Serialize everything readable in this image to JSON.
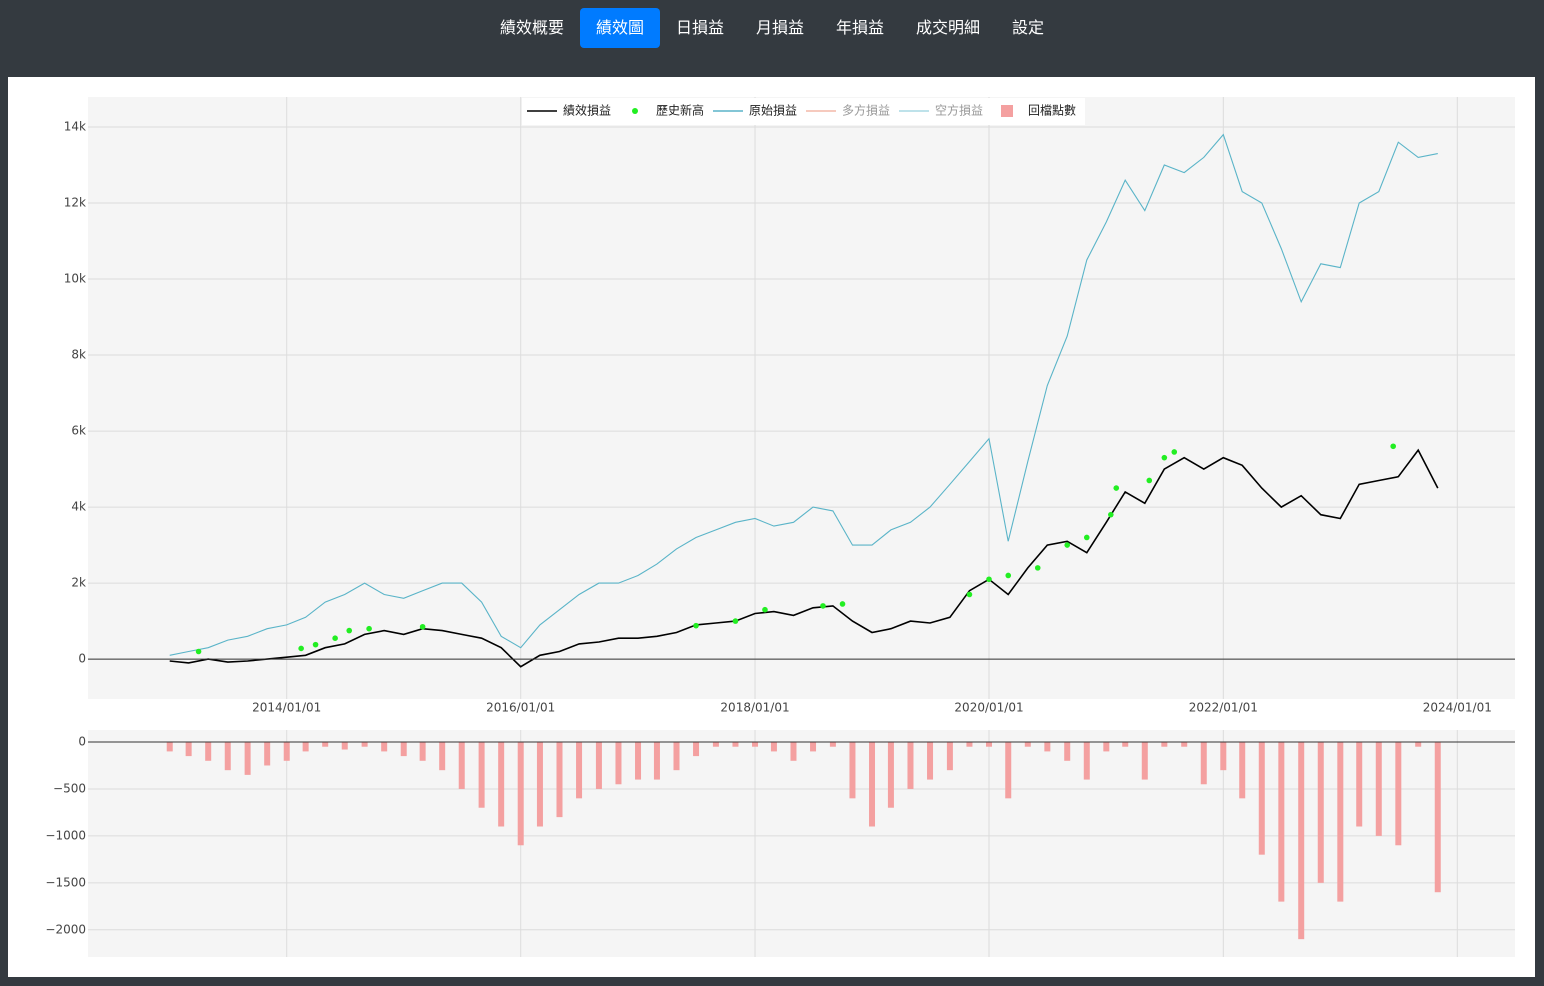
{
  "nav": {
    "tabs": [
      "績效概要",
      "績效圖",
      "日損益",
      "月損益",
      "年損益",
      "成交明細",
      "設定"
    ],
    "active": 1
  },
  "chart_data": [
    {
      "type": "line",
      "legend": "top",
      "x": [
        "2013/01/01",
        "2013/03/01",
        "2013/05/01",
        "2013/07/01",
        "2013/09/01",
        "2013/11/01",
        "2014/01/01",
        "2014/03/01",
        "2014/05/01",
        "2014/07/01",
        "2014/09/01",
        "2014/11/01",
        "2015/01/01",
        "2015/03/01",
        "2015/05/01",
        "2015/07/01",
        "2015/09/01",
        "2015/11/01",
        "2016/01/01",
        "2016/03/01",
        "2016/05/01",
        "2016/07/01",
        "2016/09/01",
        "2016/11/01",
        "2017/01/01",
        "2017/03/01",
        "2017/05/01",
        "2017/07/01",
        "2017/09/01",
        "2017/11/01",
        "2018/01/01",
        "2018/03/01",
        "2018/05/01",
        "2018/07/01",
        "2018/09/01",
        "2018/11/01",
        "2019/01/01",
        "2019/03/01",
        "2019/05/01",
        "2019/07/01",
        "2019/09/01",
        "2019/11/01",
        "2020/01/01",
        "2020/03/01",
        "2020/05/01",
        "2020/07/01",
        "2020/09/01",
        "2020/11/01",
        "2021/01/01",
        "2021/03/01",
        "2021/05/01",
        "2021/07/01",
        "2021/09/01",
        "2021/11/01",
        "2022/01/01",
        "2022/03/01",
        "2022/05/01",
        "2022/07/01",
        "2022/09/01",
        "2022/11/01",
        "2023/01/01",
        "2023/03/01",
        "2023/05/01",
        "2023/07/01",
        "2023/09/01",
        "2023/11/01"
      ],
      "series": [
        {
          "name": "績效損益",
          "color": "#000000",
          "values": [
            -50,
            -100,
            0,
            -80,
            -50,
            0,
            50,
            100,
            300,
            400,
            650,
            750,
            650,
            800,
            750,
            650,
            550,
            300,
            -200,
            100,
            200,
            400,
            450,
            550,
            550,
            600,
            700,
            900,
            950,
            1000,
            1200,
            1250,
            1150,
            1350,
            1400,
            1000,
            700,
            800,
            1000,
            950,
            1100,
            1800,
            2100,
            1700,
            2400,
            3000,
            3100,
            2800,
            3600,
            4400,
            4100,
            5000,
            5300,
            5000,
            5300,
            5100,
            4500,
            4000,
            4300,
            3800,
            3700,
            4600,
            4700,
            4800,
            5500,
            4500
          ]
        },
        {
          "name": "歷史新高",
          "color": "#22ee22",
          "type": "scatter",
          "x": [
            "2013/04/01",
            "2014/02/15",
            "2014/04/01",
            "2014/06/01",
            "2014/07/15",
            "2014/09/15",
            "2015/03/01",
            "2017/07/01",
            "2017/11/01",
            "2018/02/01",
            "2018/08/01",
            "2018/10/01",
            "2019/11/01",
            "2020/01/01",
            "2020/03/01",
            "2020/06/01",
            "2020/09/01",
            "2020/11/01",
            "2021/01/15",
            "2021/02/01",
            "2021/05/15",
            "2021/07/01",
            "2021/08/01",
            "2023/06/15"
          ],
          "values": [
            200,
            280,
            380,
            550,
            750,
            800,
            850,
            880,
            1000,
            1300,
            1400,
            1450,
            1700,
            2100,
            2200,
            2400,
            3000,
            3200,
            3800,
            4500,
            4700,
            5300,
            5450,
            5600
          ]
        },
        {
          "name": "原始損益",
          "color": "#5ab4c8",
          "values": [
            100,
            200,
            300,
            500,
            600,
            800,
            900,
            1100,
            1500,
            1700,
            2000,
            1700,
            1600,
            1800,
            2000,
            2000,
            1500,
            600,
            300,
            900,
            1300,
            1700,
            2000,
            2000,
            2200,
            2500,
            2900,
            3200,
            3400,
            3600,
            3700,
            3500,
            3600,
            4000,
            3900,
            3000,
            3000,
            3400,
            3600,
            4000,
            4600,
            5200,
            5800,
            3100,
            5200,
            7200,
            8500,
            10500,
            11500,
            12600,
            11800,
            13000,
            12800,
            13200,
            13800,
            12300,
            12000,
            10800,
            9400,
            10400,
            10300,
            12000,
            12300,
            13600,
            13200,
            13300
          ]
        },
        {
          "name": "多方損益",
          "color": "#f4b8a8",
          "visible": false
        },
        {
          "name": "空方損益",
          "color": "#a8d8e4",
          "visible": false
        }
      ],
      "xlim": [
        "2012/04/21",
        "2024/06/29"
      ],
      "xticks": [
        "2014/01/01",
        "2016/01/01",
        "2018/01/01",
        "2020/01/01",
        "2022/01/01",
        "2024/01/01"
      ],
      "ylim": [
        -1050,
        14790
      ],
      "yticks": [
        0,
        {
          "value": 2000,
          "label": "2k"
        },
        {
          "value": 4000,
          "label": "4k"
        },
        {
          "value": 6000,
          "label": "6k"
        },
        {
          "value": 8000,
          "label": "8k"
        },
        {
          "value": 10000,
          "label": "10k"
        },
        {
          "value": 12000,
          "label": "12k"
        },
        {
          "value": 14000,
          "label": "14k"
        }
      ],
      "grid": true
    },
    {
      "type": "bar",
      "x": [
        "2013/01/01",
        "2013/03/01",
        "2013/05/01",
        "2013/07/01",
        "2013/09/01",
        "2013/11/01",
        "2014/01/01",
        "2014/03/01",
        "2014/05/01",
        "2014/07/01",
        "2014/09/01",
        "2014/11/01",
        "2015/01/01",
        "2015/03/01",
        "2015/05/01",
        "2015/07/01",
        "2015/09/01",
        "2015/11/01",
        "2016/01/01",
        "2016/03/01",
        "2016/05/01",
        "2016/07/01",
        "2016/09/01",
        "2016/11/01",
        "2017/01/01",
        "2017/03/01",
        "2017/05/01",
        "2017/07/01",
        "2017/09/01",
        "2017/11/01",
        "2018/01/01",
        "2018/03/01",
        "2018/05/01",
        "2018/07/01",
        "2018/09/01",
        "2018/11/01",
        "2019/01/01",
        "2019/03/01",
        "2019/05/01",
        "2019/07/01",
        "2019/09/01",
        "2019/11/01",
        "2020/01/01",
        "2020/03/01",
        "2020/05/01",
        "2020/07/01",
        "2020/09/01",
        "2020/11/01",
        "2021/01/01",
        "2021/03/01",
        "2021/05/01",
        "2021/07/01",
        "2021/09/01",
        "2021/11/01",
        "2022/01/01",
        "2022/03/01",
        "2022/05/01",
        "2022/07/01",
        "2022/09/01",
        "2022/11/01",
        "2023/01/01",
        "2023/03/01",
        "2023/05/01",
        "2023/07/01",
        "2023/09/01",
        "2023/11/01"
      ],
      "series": [
        {
          "name": "回檔點數",
          "color": "#f4a0a0",
          "values": [
            -100,
            -150,
            -200,
            -300,
            -350,
            -250,
            -200,
            -100,
            -50,
            -80,
            -50,
            -100,
            -150,
            -200,
            -300,
            -500,
            -700,
            -900,
            -1100,
            -900,
            -800,
            -600,
            -500,
            -450,
            -400,
            -400,
            -300,
            -150,
            -50,
            -50,
            -50,
            -100,
            -200,
            -100,
            -50,
            -600,
            -900,
            -700,
            -500,
            -400,
            -300,
            -50,
            -50,
            -600,
            -50,
            -100,
            -200,
            -400,
            -100,
            -50,
            -400,
            -50,
            -50,
            -450,
            -300,
            -600,
            -1200,
            -1700,
            -2100,
            -1500,
            -1700,
            -900,
            -1000,
            -1100,
            -50,
            -1600
          ]
        }
      ],
      "xlim": [
        "2012/04/21",
        "2024/06/29"
      ],
      "ylim": [
        -2290,
        128
      ],
      "yticks": [
        0,
        {
          "value": -500,
          "label": "−500"
        },
        {
          "value": -1000,
          "label": "−1000"
        },
        {
          "value": -1500,
          "label": "−1500"
        },
        {
          "value": -2000,
          "label": "−2000"
        }
      ],
      "grid": true
    }
  ]
}
